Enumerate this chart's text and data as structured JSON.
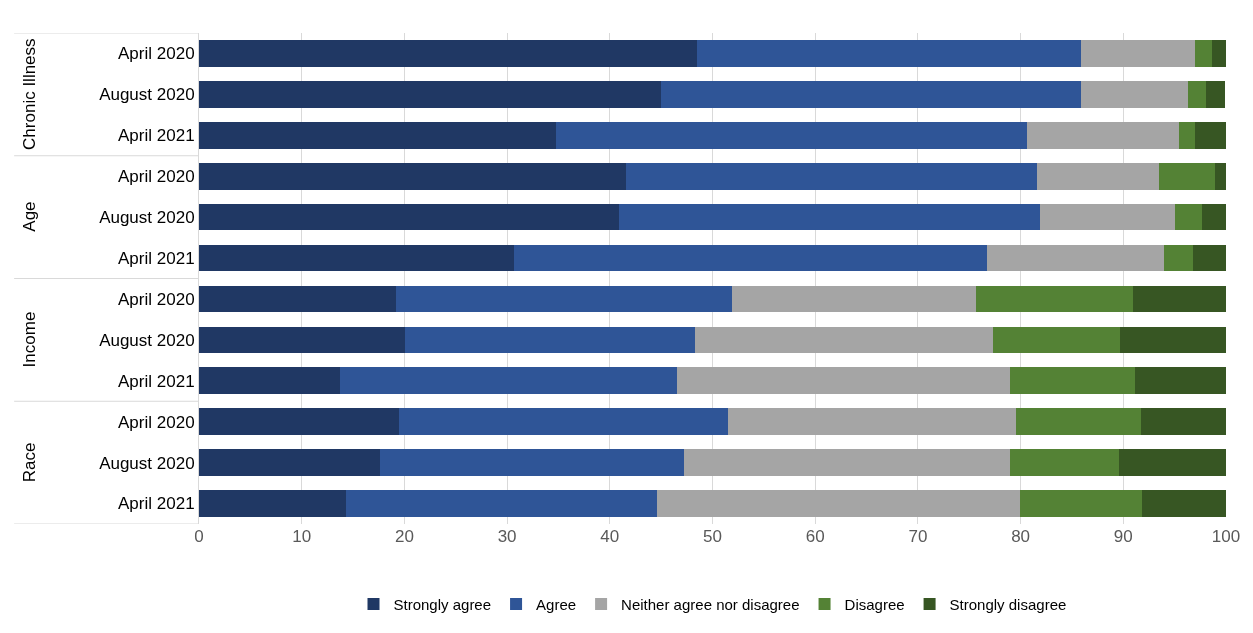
{
  "chart_data": {
    "type": "bar",
    "orientation": "horizontal",
    "stacked": true,
    "categories": [
      "April 2020",
      "August 2020",
      "April 2021",
      "April 2020",
      "August 2020",
      "April 2021",
      "April 2020",
      "August 2020",
      "April 2021",
      "April 2020",
      "August 2020",
      "April 2021"
    ],
    "annotations": [
      "Chronic Illness",
      "Age",
      "Income",
      "Race"
    ],
    "series": [
      {
        "name": "Strongly agree",
        "color": "#203864",
        "values": [
          48.5,
          45.0,
          34.8,
          41.6,
          40.9,
          30.7,
          19.2,
          20.1,
          13.7,
          19.5,
          17.6,
          14.3
        ]
      },
      {
        "name": "Agree",
        "color": "#2f5597",
        "values": [
          37.4,
          40.9,
          45.8,
          40.0,
          41.0,
          46.0,
          32.7,
          28.2,
          32.8,
          32.0,
          29.6,
          30.3
        ]
      },
      {
        "name": "Neither agree nor disagree",
        "color": "#a5a5a5",
        "values": [
          11.1,
          10.4,
          14.8,
          11.9,
          13.1,
          17.3,
          23.8,
          29.0,
          32.5,
          28.1,
          31.8,
          35.3
        ]
      },
      {
        "name": "Disagree",
        "color": "#548235",
        "values": [
          1.6,
          1.8,
          1.6,
          5.4,
          2.7,
          2.8,
          15.2,
          12.4,
          12.1,
          12.1,
          10.6,
          11.9
        ]
      },
      {
        "name": "Strongly disagree",
        "color": "#375623",
        "values": [
          1.4,
          1.8,
          3.0,
          1.1,
          2.3,
          3.2,
          9.1,
          10.3,
          8.9,
          8.3,
          10.4,
          8.2
        ]
      }
    ],
    "xlim": [
      0,
      100
    ],
    "xticks": [
      0,
      10,
      20,
      30,
      40,
      50,
      60,
      70,
      80,
      90,
      100
    ],
    "grid": "x",
    "legend": "bottom"
  }
}
